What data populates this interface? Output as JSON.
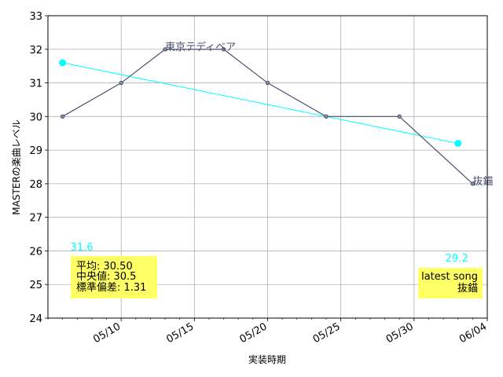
{
  "chart_data": {
    "type": "line",
    "xlabel": "実装時期",
    "ylabel": "MASTERの楽曲レベル",
    "ylim": [
      24,
      33
    ],
    "yticks": [
      24,
      25,
      26,
      27,
      28,
      29,
      30,
      31,
      32,
      33
    ],
    "xlim": [
      "2021-05-05",
      "2021-06-04"
    ],
    "xticks": [
      {
        "date": "2021-05-10",
        "label": "05/10"
      },
      {
        "date": "2021-05-15",
        "label": "05/15"
      },
      {
        "date": "2021-05-20",
        "label": "05/20"
      },
      {
        "date": "2021-05-25",
        "label": "05/25"
      },
      {
        "date": "2021-05-30",
        "label": "05/30"
      },
      {
        "date": "2021-06-04",
        "label": "06/04"
      }
    ],
    "grid": true,
    "series": [
      {
        "color": "#4c5070",
        "points": [
          {
            "x": "2021-05-06",
            "y": 30
          },
          {
            "x": "2021-05-10",
            "y": 31
          },
          {
            "x": "2021-05-13",
            "y": 32
          },
          {
            "x": "2021-05-17",
            "y": 32
          },
          {
            "x": "2021-05-20",
            "y": 31
          },
          {
            "x": "2021-05-24",
            "y": 30
          },
          {
            "x": "2021-05-29",
            "y": 30
          },
          {
            "x": "2021-06-03",
            "y": 28
          }
        ]
      }
    ],
    "trend": {
      "color": "#00ffff",
      "start": {
        "x": "2021-05-06",
        "y": 31.6,
        "label": "31.6"
      },
      "end": {
        "x": "2021-06-02",
        "y": 29.2,
        "label": "29.2"
      }
    },
    "point_annotations": [
      {
        "x": "2021-05-13",
        "y": 32,
        "text": "東京テディベア"
      },
      {
        "x": "2021-06-03",
        "y": 28,
        "text": "抜錨"
      }
    ],
    "stats_box": {
      "lines": [
        "平均: 30.50",
        "中央値: 30.5",
        "標準偏差:  1.31"
      ],
      "background": "#ffff66"
    },
    "latest_box": {
      "lines": [
        "latest song",
        "抜錨"
      ],
      "background": "#ffff66"
    }
  }
}
